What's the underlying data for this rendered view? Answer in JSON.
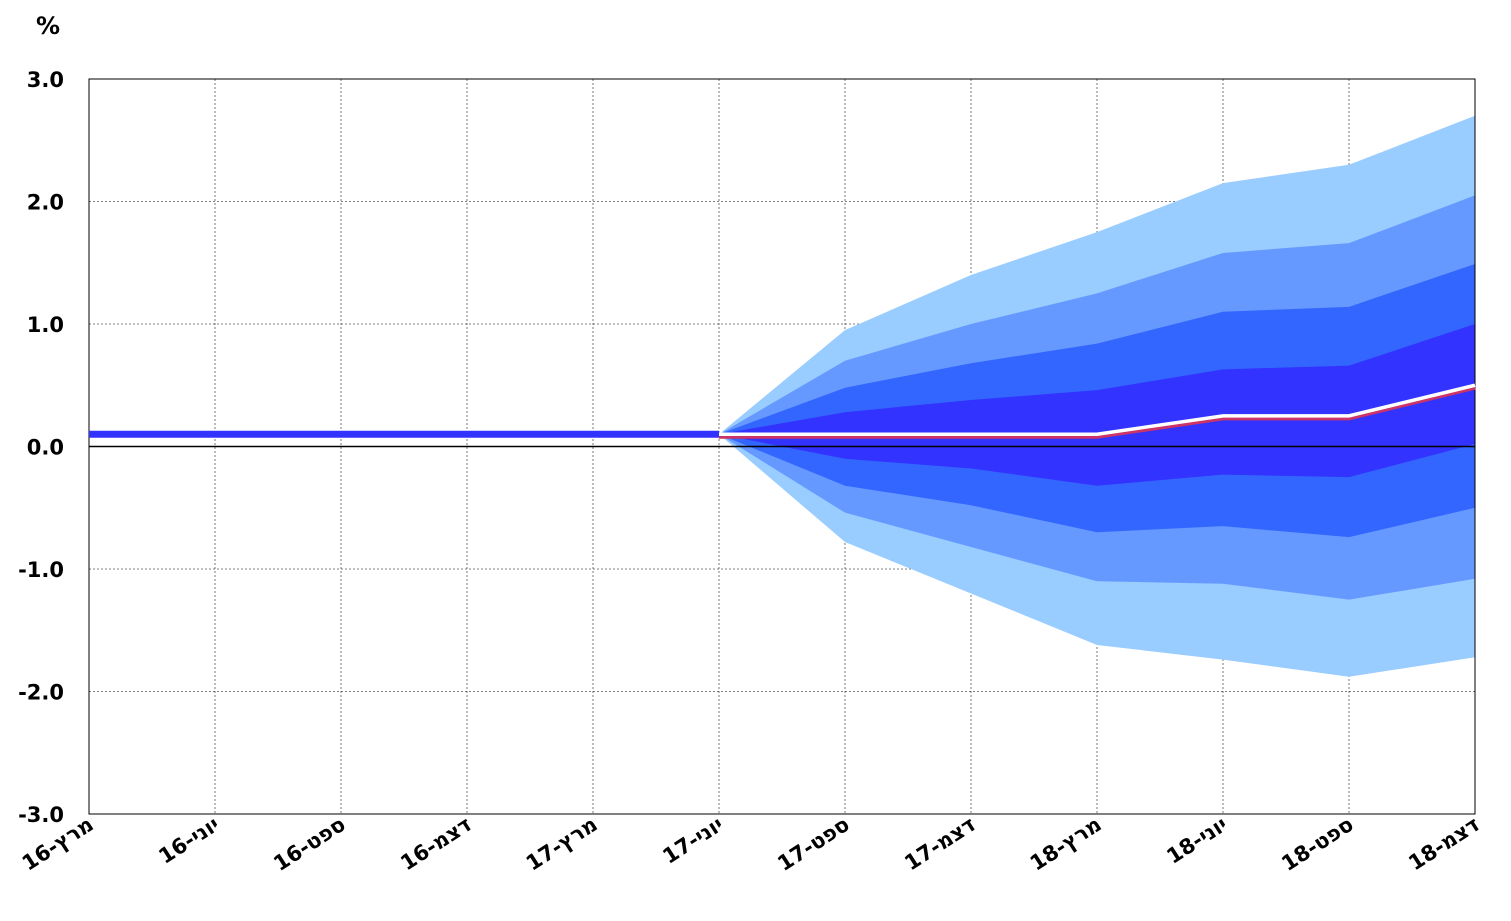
{
  "chart_data": {
    "type": "area",
    "title": "",
    "xlabel": "",
    "ylabel": "%",
    "ylim": [
      -3.0,
      3.0
    ],
    "yticks": [
      "3.0",
      "2.0",
      "1.0",
      "0.0",
      "-1.0",
      "-2.0",
      "-3.0"
    ],
    "categories": [
      "מרץ-16",
      "יוני-16",
      "ספט-16",
      "דצמ-16",
      "מרץ-17",
      "יוני-17",
      "ספט-17",
      "דצמ-17",
      "מרץ-18",
      "יוני-18",
      "ספט-18",
      "דצמ-18"
    ],
    "grid": true,
    "history": {
      "values": [
        0.1,
        0.1,
        0.1,
        0.1,
        0.1,
        0.1
      ]
    },
    "forecast": {
      "median": [
        null,
        null,
        null,
        null,
        null,
        0.1,
        0.1,
        0.1,
        0.1,
        0.25,
        0.25,
        0.5
      ],
      "bands": [
        {
          "color": "#99CCFF",
          "upper": [
            null,
            null,
            null,
            null,
            null,
            0.1,
            0.95,
            1.4,
            1.75,
            2.15,
            2.3,
            2.7
          ],
          "lower": [
            null,
            null,
            null,
            null,
            null,
            0.1,
            -0.78,
            -1.2,
            -1.62,
            -1.74,
            -1.88,
            -1.72
          ]
        },
        {
          "color": "#6699FF",
          "upper": [
            null,
            null,
            null,
            null,
            null,
            0.1,
            0.7,
            1.0,
            1.25,
            1.58,
            1.66,
            2.05
          ],
          "lower": [
            null,
            null,
            null,
            null,
            null,
            0.1,
            -0.54,
            -0.82,
            -1.1,
            -1.12,
            -1.25,
            -1.08
          ]
        },
        {
          "color": "#3366FF",
          "upper": [
            null,
            null,
            null,
            null,
            null,
            0.1,
            0.48,
            0.68,
            0.84,
            1.1,
            1.14,
            1.49
          ],
          "lower": [
            null,
            null,
            null,
            null,
            null,
            0.1,
            -0.32,
            -0.48,
            -0.7,
            -0.65,
            -0.74,
            -0.5
          ]
        },
        {
          "color": "#3333FF",
          "upper": [
            null,
            null,
            null,
            null,
            null,
            0.1,
            0.28,
            0.38,
            0.46,
            0.63,
            0.66,
            1.0
          ],
          "lower": [
            null,
            null,
            null,
            null,
            null,
            0.1,
            -0.1,
            -0.18,
            -0.32,
            -0.23,
            -0.25,
            0.02
          ]
        }
      ]
    },
    "colors": {
      "history_line": "#3333FF",
      "median_line": "#FFFFFF",
      "median_shadow": "#CC3366"
    }
  }
}
